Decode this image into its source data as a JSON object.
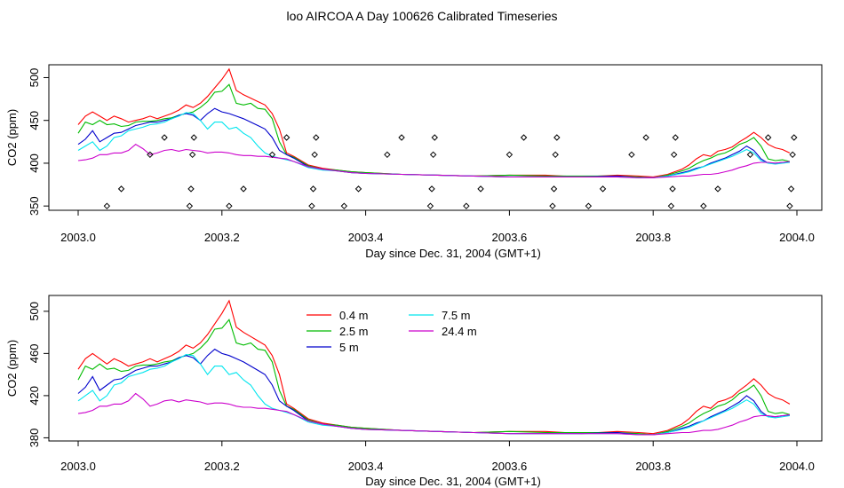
{
  "figure_title": "loo AIRCOA A  Day 100626  Calibrated Timeseries",
  "colors": {
    "0.4 m": "#ff0000",
    "2.5 m": "#00bb00",
    "5 m": "#0000cc",
    "7.5 m": "#00e5ee",
    "24.4 m": "#cc00cc",
    "points": "#000000"
  },
  "chart_data": [
    {
      "type": "line",
      "title": "",
      "xlabel": "Day since Dec. 31, 2004 (GMT+1)",
      "ylabel": "CO2 (ppm)",
      "xlim": [
        2003.0,
        2004.0
      ],
      "ylim": [
        345,
        515
      ],
      "xticks": [
        "2003.0",
        "2003.2",
        "2003.4",
        "2003.6",
        "2003.8",
        "2004.0"
      ],
      "yticks": [
        "350",
        "400",
        "450",
        "500"
      ],
      "grid": false,
      "legend": "none",
      "x": [
        2003.0,
        2003.01,
        2003.02,
        2003.03,
        2003.04,
        2003.05,
        2003.06,
        2003.07,
        2003.08,
        2003.09,
        2003.1,
        2003.11,
        2003.12,
        2003.13,
        2003.14,
        2003.15,
        2003.16,
        2003.17,
        2003.18,
        2003.19,
        2003.2,
        2003.21,
        2003.22,
        2003.23,
        2003.24,
        2003.25,
        2003.26,
        2003.27,
        2003.28,
        2003.29,
        2003.3,
        2003.32,
        2003.34,
        2003.36,
        2003.38,
        2003.4,
        2003.45,
        2003.5,
        2003.55,
        2003.6,
        2003.65,
        2003.7,
        2003.75,
        2003.78,
        2003.8,
        2003.82,
        2003.84,
        2003.85,
        2003.86,
        2003.87,
        2003.88,
        2003.89,
        2003.9,
        2003.91,
        2003.92,
        2003.93,
        2003.94,
        2003.95,
        2003.96,
        2003.97,
        2003.98,
        2003.99
      ],
      "series": [
        {
          "name": "0.4 m",
          "values": [
            445,
            455,
            460,
            455,
            450,
            455,
            452,
            448,
            450,
            452,
            455,
            452,
            455,
            458,
            462,
            468,
            465,
            470,
            478,
            488,
            498,
            510,
            485,
            480,
            476,
            472,
            468,
            458,
            440,
            412,
            408,
            398,
            394,
            392,
            390,
            389,
            387,
            386,
            385,
            386,
            386,
            384,
            386,
            385,
            384,
            387,
            393,
            398,
            405,
            410,
            408,
            414,
            416,
            419,
            425,
            430,
            436,
            430,
            422,
            418,
            416,
            412
          ]
        },
        {
          "name": "2.5 m",
          "values": [
            435,
            448,
            445,
            450,
            445,
            446,
            443,
            444,
            448,
            449,
            449,
            450,
            452,
            453,
            456,
            458,
            460,
            465,
            472,
            483,
            484,
            492,
            470,
            468,
            470,
            464,
            463,
            452,
            425,
            410,
            407,
            397,
            393,
            392,
            390,
            389,
            387,
            386,
            385,
            386,
            385,
            385,
            385,
            384,
            383,
            386,
            391,
            394,
            399,
            403,
            406,
            410,
            412,
            416,
            422,
            425,
            430,
            420,
            405,
            403,
            404,
            402
          ]
        },
        {
          "name": "5 m",
          "values": [
            422,
            428,
            438,
            425,
            430,
            435,
            436,
            440,
            444,
            446,
            448,
            448,
            450,
            452,
            456,
            458,
            456,
            450,
            458,
            464,
            460,
            458,
            455,
            452,
            448,
            444,
            440,
            430,
            415,
            410,
            406,
            396,
            393,
            391,
            389,
            388,
            387,
            386,
            385,
            384,
            384,
            384,
            385,
            383,
            383,
            385,
            389,
            391,
            394,
            396,
            400,
            403,
            406,
            410,
            414,
            420,
            415,
            405,
            400,
            400,
            401,
            401
          ]
        },
        {
          "name": "7.5 m",
          "values": [
            415,
            420,
            425,
            415,
            420,
            430,
            432,
            438,
            440,
            442,
            445,
            446,
            448,
            452,
            455,
            459,
            458,
            450,
            440,
            448,
            448,
            440,
            442,
            435,
            430,
            420,
            412,
            408,
            406,
            404,
            402,
            395,
            392,
            391,
            389,
            388,
            387,
            386,
            385,
            384,
            384,
            384,
            384,
            383,
            383,
            385,
            388,
            390,
            393,
            396,
            399,
            402,
            405,
            408,
            412,
            416,
            412,
            403,
            400,
            399,
            400,
            401
          ]
        },
        {
          "name": "24.4 m",
          "values": [
            403,
            404,
            406,
            410,
            410,
            412,
            412,
            415,
            422,
            417,
            410,
            412,
            415,
            416,
            414,
            416,
            415,
            414,
            412,
            413,
            413,
            412,
            410,
            409,
            409,
            408,
            408,
            407,
            406,
            405,
            402,
            396,
            393,
            391,
            389,
            388,
            387,
            386,
            385,
            384,
            384,
            384,
            384,
            383,
            383,
            384,
            385,
            385,
            386,
            387,
            387,
            388,
            390,
            392,
            395,
            397,
            400,
            401,
            401,
            400,
            401,
            402
          ]
        }
      ],
      "points": [
        {
          "x": 2003.04,
          "y": 350
        },
        {
          "x": 2003.06,
          "y": 370
        },
        {
          "x": 2003.1,
          "y": 410
        },
        {
          "x": 2003.12,
          "y": 430
        },
        {
          "x": 2003.155,
          "y": 350
        },
        {
          "x": 2003.157,
          "y": 370
        },
        {
          "x": 2003.159,
          "y": 410
        },
        {
          "x": 2003.161,
          "y": 430
        },
        {
          "x": 2003.21,
          "y": 350
        },
        {
          "x": 2003.23,
          "y": 370
        },
        {
          "x": 2003.27,
          "y": 410
        },
        {
          "x": 2003.29,
          "y": 430
        },
        {
          "x": 2003.325,
          "y": 350
        },
        {
          "x": 2003.327,
          "y": 370
        },
        {
          "x": 2003.329,
          "y": 410
        },
        {
          "x": 2003.331,
          "y": 430
        },
        {
          "x": 2003.37,
          "y": 350
        },
        {
          "x": 2003.39,
          "y": 370
        },
        {
          "x": 2003.43,
          "y": 410
        },
        {
          "x": 2003.45,
          "y": 430
        },
        {
          "x": 2003.49,
          "y": 350
        },
        {
          "x": 2003.492,
          "y": 370
        },
        {
          "x": 2003.494,
          "y": 410
        },
        {
          "x": 2003.496,
          "y": 430
        },
        {
          "x": 2003.54,
          "y": 350
        },
        {
          "x": 2003.56,
          "y": 370
        },
        {
          "x": 2003.6,
          "y": 410
        },
        {
          "x": 2003.62,
          "y": 430
        },
        {
          "x": 2003.66,
          "y": 350
        },
        {
          "x": 2003.662,
          "y": 370
        },
        {
          "x": 2003.664,
          "y": 410
        },
        {
          "x": 2003.666,
          "y": 430
        },
        {
          "x": 2003.71,
          "y": 350
        },
        {
          "x": 2003.73,
          "y": 370
        },
        {
          "x": 2003.77,
          "y": 410
        },
        {
          "x": 2003.79,
          "y": 430
        },
        {
          "x": 2003.825,
          "y": 350
        },
        {
          "x": 2003.827,
          "y": 370
        },
        {
          "x": 2003.829,
          "y": 410
        },
        {
          "x": 2003.831,
          "y": 430
        },
        {
          "x": 2003.87,
          "y": 350
        },
        {
          "x": 2003.89,
          "y": 370
        },
        {
          "x": 2003.935,
          "y": 410
        },
        {
          "x": 2003.96,
          "y": 430
        },
        {
          "x": 2003.99,
          "y": 350
        },
        {
          "x": 2003.992,
          "y": 370
        },
        {
          "x": 2003.994,
          "y": 410
        },
        {
          "x": 2003.996,
          "y": 430
        }
      ]
    },
    {
      "type": "line",
      "title": "",
      "xlabel": "Day since Dec. 31, 2004 (GMT+1)",
      "ylabel": "CO2 (ppm)",
      "xlim": [
        2003.0,
        2004.0
      ],
      "ylim": [
        377,
        515
      ],
      "xticks": [
        "2003.0",
        "2003.2",
        "2003.4",
        "2003.6",
        "2003.8",
        "2004.0"
      ],
      "yticks": [
        "380",
        "420",
        "460",
        "500"
      ],
      "grid": false,
      "legend": "top-left",
      "legend_items": [
        "0.4 m",
        "2.5 m",
        "5 m",
        "7.5 m",
        "24.4 m"
      ],
      "x": [
        2003.0,
        2003.01,
        2003.02,
        2003.03,
        2003.04,
        2003.05,
        2003.06,
        2003.07,
        2003.08,
        2003.09,
        2003.1,
        2003.11,
        2003.12,
        2003.13,
        2003.14,
        2003.15,
        2003.16,
        2003.17,
        2003.18,
        2003.19,
        2003.2,
        2003.21,
        2003.22,
        2003.23,
        2003.24,
        2003.25,
        2003.26,
        2003.27,
        2003.28,
        2003.29,
        2003.3,
        2003.32,
        2003.34,
        2003.36,
        2003.38,
        2003.4,
        2003.45,
        2003.5,
        2003.55,
        2003.6,
        2003.65,
        2003.7,
        2003.75,
        2003.78,
        2003.8,
        2003.82,
        2003.84,
        2003.85,
        2003.86,
        2003.87,
        2003.88,
        2003.89,
        2003.9,
        2003.91,
        2003.92,
        2003.93,
        2003.94,
        2003.95,
        2003.96,
        2003.97,
        2003.98,
        2003.99
      ],
      "series": [
        {
          "name": "0.4 m",
          "values": [
            445,
            455,
            460,
            455,
            450,
            455,
            452,
            448,
            450,
            452,
            455,
            452,
            455,
            458,
            462,
            468,
            465,
            470,
            478,
            488,
            498,
            510,
            485,
            480,
            476,
            472,
            468,
            458,
            440,
            412,
            408,
            398,
            394,
            392,
            390,
            389,
            387,
            386,
            385,
            386,
            386,
            384,
            386,
            385,
            384,
            387,
            393,
            398,
            405,
            410,
            408,
            414,
            416,
            419,
            425,
            430,
            436,
            430,
            422,
            418,
            416,
            412
          ]
        },
        {
          "name": "2.5 m",
          "values": [
            435,
            448,
            445,
            450,
            445,
            446,
            443,
            444,
            448,
            449,
            449,
            450,
            452,
            453,
            456,
            458,
            460,
            465,
            472,
            483,
            484,
            492,
            470,
            468,
            470,
            464,
            463,
            452,
            425,
            410,
            407,
            397,
            393,
            392,
            390,
            389,
            387,
            386,
            385,
            386,
            385,
            385,
            385,
            384,
            383,
            386,
            391,
            394,
            399,
            403,
            406,
            410,
            412,
            416,
            422,
            425,
            430,
            420,
            405,
            403,
            404,
            402
          ]
        },
        {
          "name": "5 m",
          "values": [
            422,
            428,
            438,
            425,
            430,
            435,
            436,
            440,
            444,
            446,
            448,
            448,
            450,
            452,
            456,
            458,
            456,
            450,
            458,
            464,
            460,
            458,
            455,
            452,
            448,
            444,
            440,
            430,
            415,
            410,
            406,
            396,
            393,
            391,
            389,
            388,
            387,
            386,
            385,
            384,
            384,
            384,
            385,
            383,
            383,
            385,
            389,
            391,
            394,
            396,
            400,
            403,
            406,
            410,
            414,
            420,
            415,
            405,
            400,
            400,
            401,
            401
          ]
        },
        {
          "name": "7.5 m",
          "values": [
            415,
            420,
            425,
            415,
            420,
            430,
            432,
            438,
            440,
            442,
            445,
            446,
            448,
            452,
            455,
            459,
            458,
            450,
            440,
            448,
            448,
            440,
            442,
            435,
            430,
            420,
            412,
            408,
            406,
            404,
            402,
            395,
            392,
            391,
            389,
            388,
            387,
            386,
            385,
            384,
            384,
            384,
            384,
            383,
            383,
            385,
            388,
            390,
            393,
            396,
            399,
            402,
            405,
            408,
            412,
            416,
            412,
            403,
            400,
            399,
            400,
            401
          ]
        },
        {
          "name": "24.4 m",
          "values": [
            403,
            404,
            406,
            410,
            410,
            412,
            412,
            415,
            422,
            417,
            410,
            412,
            415,
            416,
            414,
            416,
            415,
            414,
            412,
            413,
            413,
            412,
            410,
            409,
            409,
            408,
            408,
            407,
            406,
            405,
            402,
            396,
            393,
            391,
            389,
            388,
            387,
            386,
            385,
            384,
            384,
            384,
            384,
            383,
            383,
            384,
            385,
            385,
            386,
            387,
            387,
            388,
            390,
            392,
            395,
            397,
            400,
            401,
            401,
            400,
            401,
            402
          ]
        }
      ]
    }
  ]
}
